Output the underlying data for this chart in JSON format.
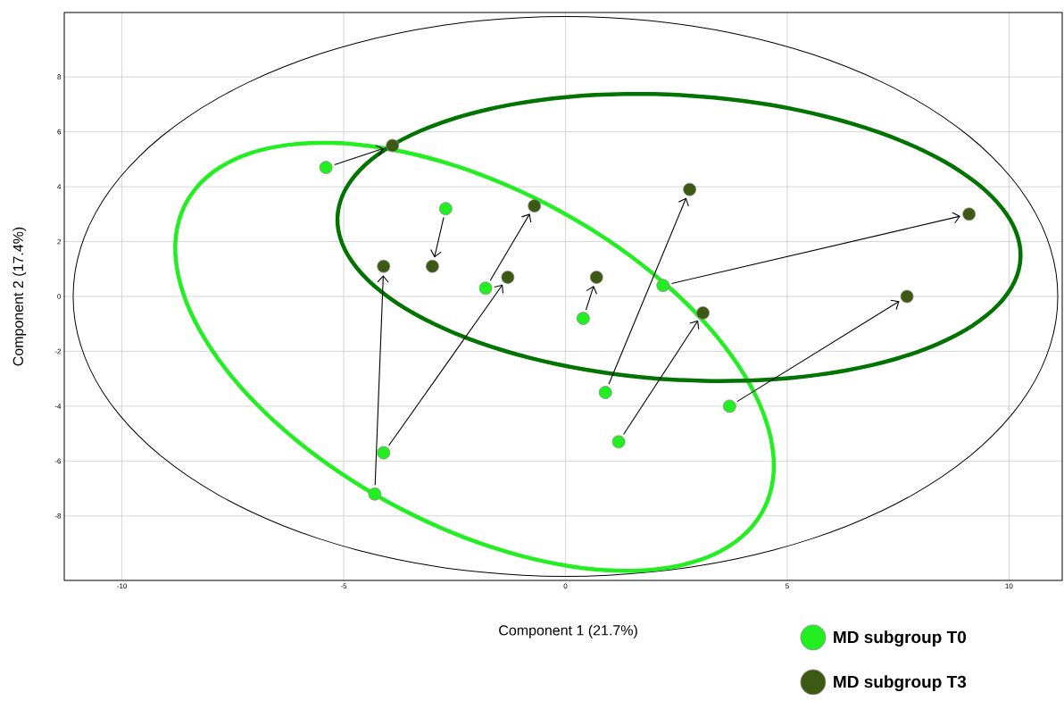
{
  "chart_data": {
    "type": "scatter",
    "xlabel": "Component 1 (21.7%)",
    "ylabel": "Component 2 (17.4%)",
    "xlim": [
      -11.3,
      11.2
    ],
    "ylim": [
      -10.35,
      10.35
    ],
    "xticks": [
      -10,
      -5,
      0,
      5,
      10
    ],
    "yticks": [
      -8,
      -6,
      -4,
      -2,
      0,
      2,
      4,
      6,
      8
    ],
    "grid": true,
    "legend": "bottom right",
    "marker": "circle",
    "series": [
      {
        "name": "MD subgroup T0",
        "color": "#22ee22",
        "x": [
          -5.4,
          -2.7,
          -1.8,
          0.4,
          0.9,
          1.2,
          2.2,
          3.7,
          -4.1,
          -4.3
        ],
        "values": [
          4.7,
          3.2,
          0.3,
          -0.8,
          -3.5,
          -5.3,
          0.4,
          -4.0,
          -5.7,
          -7.2
        ]
      },
      {
        "name": "MD subgroup T3",
        "color": "#3c5a14",
        "x": [
          -3.9,
          -3.0,
          -0.7,
          0.7,
          2.8,
          3.1,
          9.1,
          7.7,
          -1.3,
          -4.1
        ],
        "values": [
          5.5,
          1.1,
          3.3,
          0.7,
          3.9,
          -0.6,
          3.0,
          0.0,
          0.7,
          1.1
        ]
      }
    ]
  }
}
